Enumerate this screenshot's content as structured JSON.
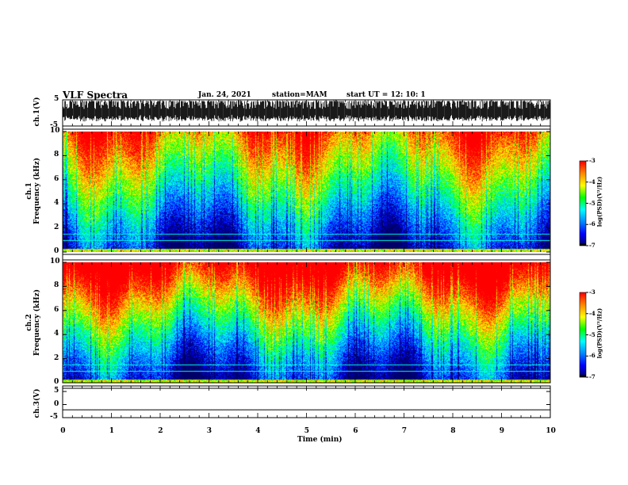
{
  "header": {
    "title": "VLF Spectra",
    "date": "Jan. 24, 2021",
    "station": "station=MAM",
    "start": "start  UT =   12: 10: 1"
  },
  "colors": {
    "spectrogram_scale": [
      "#000066",
      "#0000ff",
      "#0088ff",
      "#00ffff",
      "#00ff00",
      "#ffff00",
      "#ff8800",
      "#ff0000",
      "#ffffff"
    ]
  },
  "chart_data": [
    {
      "type": "line",
      "name": "ch1-waveform",
      "ylabel": "ch.1(V)",
      "ylim": [
        -5,
        5
      ],
      "yticks": [
        "5",
        "-5"
      ],
      "xlim": [
        0,
        10
      ],
      "description_values": {
        "y_min": -5,
        "y_max": 5
      }
    },
    {
      "type": "heatmap",
      "name": "ch1-spectrogram",
      "ylabel": "ch.1 Frequency (kHz)",
      "ylabel_line1": "ch.1",
      "ylabel_line2": "Frequency  (kHz)",
      "ylim": [
        0,
        10
      ],
      "yticks": [
        "0",
        "2",
        "4",
        "6",
        "8",
        "10"
      ],
      "xlim": [
        0,
        10
      ],
      "colorbar": {
        "min": -7,
        "max": -3,
        "ticks": [
          "-3",
          "-4",
          "-5",
          "-6",
          "-7"
        ],
        "label": "log(PSD)(V²/Hz)"
      }
    },
    {
      "type": "heatmap",
      "name": "ch2-spectrogram",
      "ylabel": "ch.2 Frequency (kHz)",
      "ylabel_line1": "ch.2",
      "ylabel_line2": "Frequency  (kHz)",
      "ylim": [
        0,
        10
      ],
      "yticks": [
        "0",
        "2",
        "4",
        "6",
        "8",
        "10"
      ],
      "xlim": [
        0,
        10
      ],
      "colorbar": {
        "min": -7,
        "max": -3,
        "ticks": [
          "-3",
          "-4",
          "-5",
          "-6",
          "-7"
        ],
        "label": "log(PSD)(V²/Hz)"
      }
    },
    {
      "type": "line",
      "name": "ch3-waveform",
      "ylabel": "ch.3(V)",
      "ylim": [
        -5,
        5
      ],
      "yticks": [
        "5",
        "0",
        "-5"
      ],
      "xlim": [
        0,
        10
      ],
      "values": [
        -2,
        -2
      ]
    }
  ],
  "xaxis": {
    "label": "Time  (min)",
    "ticks": [
      "0",
      "1",
      "2",
      "3",
      "4",
      "5",
      "6",
      "7",
      "8",
      "9",
      "10"
    ]
  }
}
